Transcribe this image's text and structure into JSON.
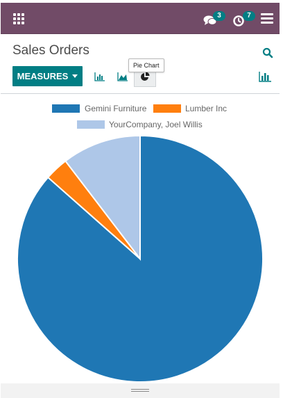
{
  "header": {
    "chat_count": "3",
    "activity_count": "7"
  },
  "control_panel": {
    "title": "Sales Orders",
    "measures_label": "MEASURES",
    "tooltip": "Pie Chart"
  },
  "colors": {
    "topbar": "#714b67",
    "accent": "#017e84"
  },
  "chart_data": {
    "type": "pie",
    "slices": [
      {
        "label": "Gemini Furniture",
        "value": 86.5,
        "color": "#1f77b4"
      },
      {
        "label": "Lumber Inc",
        "value": 3.1,
        "color": "#ff7f0e"
      },
      {
        "label": "YourCompany, Joel Willis",
        "value": 10.4,
        "color": "#aec7e8"
      }
    ],
    "legend_position": "top-center"
  }
}
